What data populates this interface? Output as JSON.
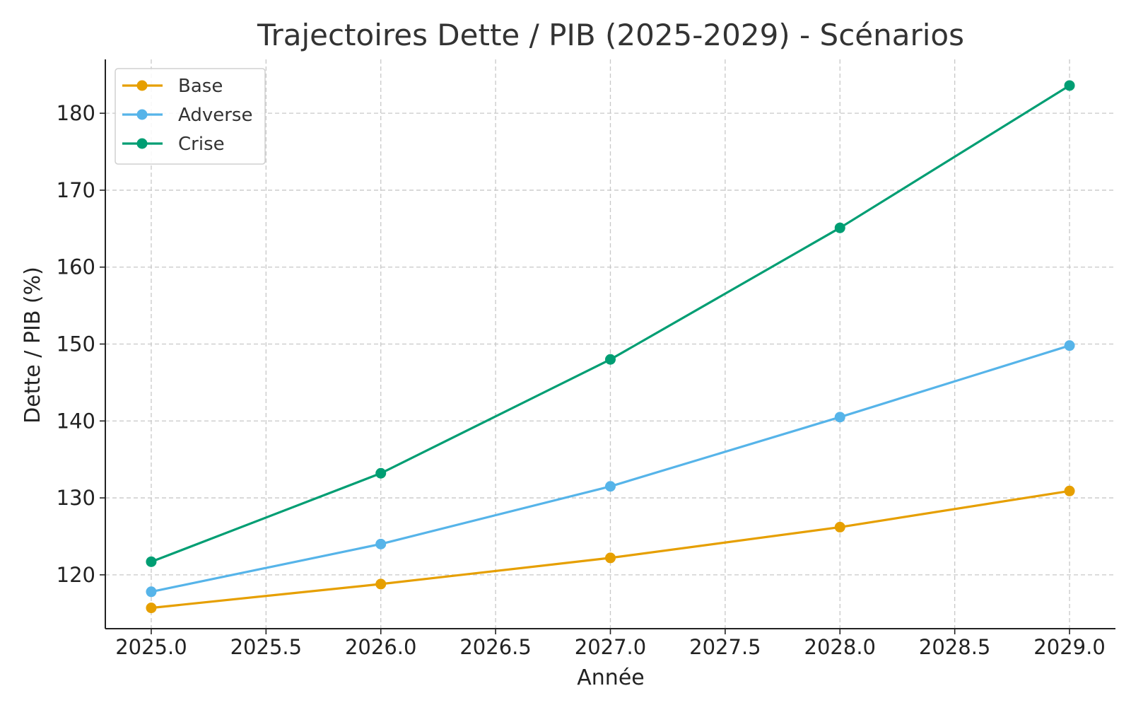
{
  "chart_data": {
    "type": "line",
    "title": "Trajectoires Dette / PIB (2025-2029) - Scénarios",
    "xlabel": "Année",
    "ylabel": "Dette / PIB (%)",
    "x": [
      2025,
      2026,
      2027,
      2028,
      2029
    ],
    "xlim": [
      2024.8,
      2029.2
    ],
    "ylim": [
      113.0,
      187.0
    ],
    "xticks": [
      2025.0,
      2025.5,
      2026.0,
      2026.5,
      2027.0,
      2027.5,
      2028.0,
      2028.5,
      2029.0
    ],
    "xtick_labels": [
      "2025.0",
      "2025.5",
      "2026.0",
      "2026.5",
      "2027.0",
      "2027.5",
      "2028.0",
      "2028.5",
      "2029.0"
    ],
    "yticks": [
      120,
      130,
      140,
      150,
      160,
      170,
      180
    ],
    "ytick_labels": [
      "120",
      "130",
      "140",
      "150",
      "160",
      "170",
      "180"
    ],
    "grid": true,
    "legend_position": "top-left",
    "series": [
      {
        "name": "Base",
        "color": "#E69F00",
        "values": [
          115.7,
          118.8,
          122.2,
          126.2,
          130.9
        ]
      },
      {
        "name": "Adverse",
        "color": "#56B4E9",
        "values": [
          117.8,
          124.0,
          131.5,
          140.5,
          149.8
        ]
      },
      {
        "name": "Crise",
        "color": "#009E73",
        "values": [
          121.7,
          133.2,
          148.0,
          165.1,
          183.6
        ]
      }
    ]
  }
}
